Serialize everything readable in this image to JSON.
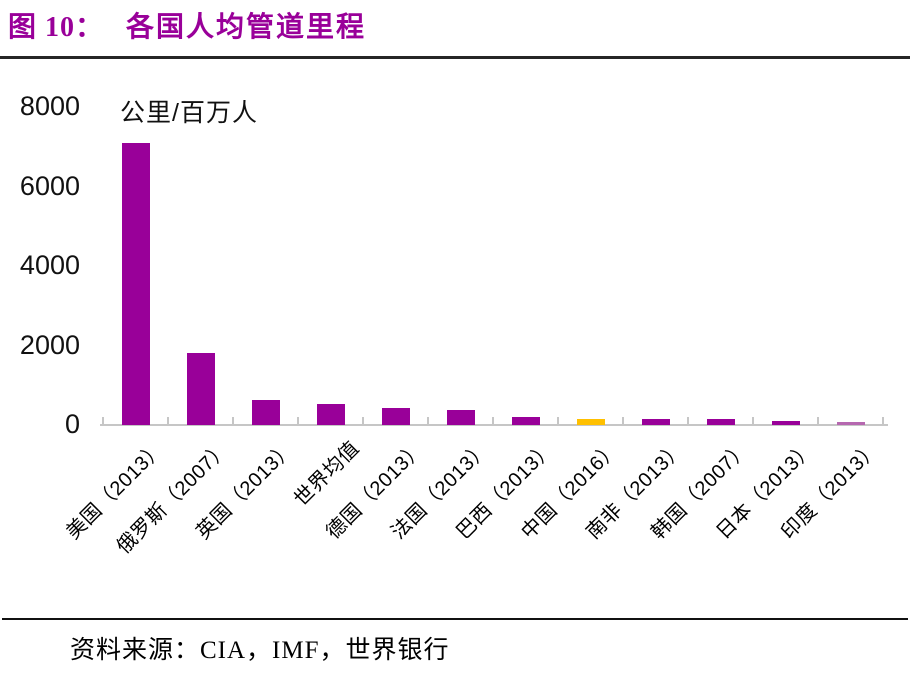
{
  "header": {
    "figure_label": "图 10：",
    "title": "各国人均管道里程"
  },
  "footer": {
    "source": "资料来源：CIA，IMF，世界银行"
  },
  "colors": {
    "title": "#990099",
    "bar_default": "#990099",
    "bar_highlight_china": "#FFC000",
    "bar_india": "#B668B0",
    "axis": "#C6C6C6",
    "rule_top": "#262626",
    "rule_bottom": "#111111",
    "text": "#000000"
  },
  "chart_data": {
    "type": "bar",
    "title": "各国人均管道里程",
    "ylabel": "公里/百万人",
    "xlabel": "",
    "ylim": [
      0,
      8000
    ],
    "yticks": [
      "0",
      "2000",
      "4000",
      "6000",
      "8000"
    ],
    "ytick_values": [
      0,
      2000,
      4000,
      6000,
      8000
    ],
    "grid": false,
    "legend_position": "none",
    "categories": [
      "美国（2013）",
      "俄罗斯（2007）",
      "英国（2013）",
      "世界均值",
      "德国（2013）",
      "法国（2013）",
      "巴西（2013）",
      "中国（2016）",
      "南非（2013）",
      "韩国（2007）",
      "日本（2013）",
      "印度（2013）"
    ],
    "values": [
      7100,
      1820,
      620,
      520,
      420,
      380,
      200,
      140,
      160,
      140,
      100,
      85
    ],
    "bar_colors": [
      "#990099",
      "#990099",
      "#990099",
      "#990099",
      "#990099",
      "#990099",
      "#990099",
      "#FFC000",
      "#990099",
      "#990099",
      "#990099",
      "#B668B0"
    ]
  }
}
